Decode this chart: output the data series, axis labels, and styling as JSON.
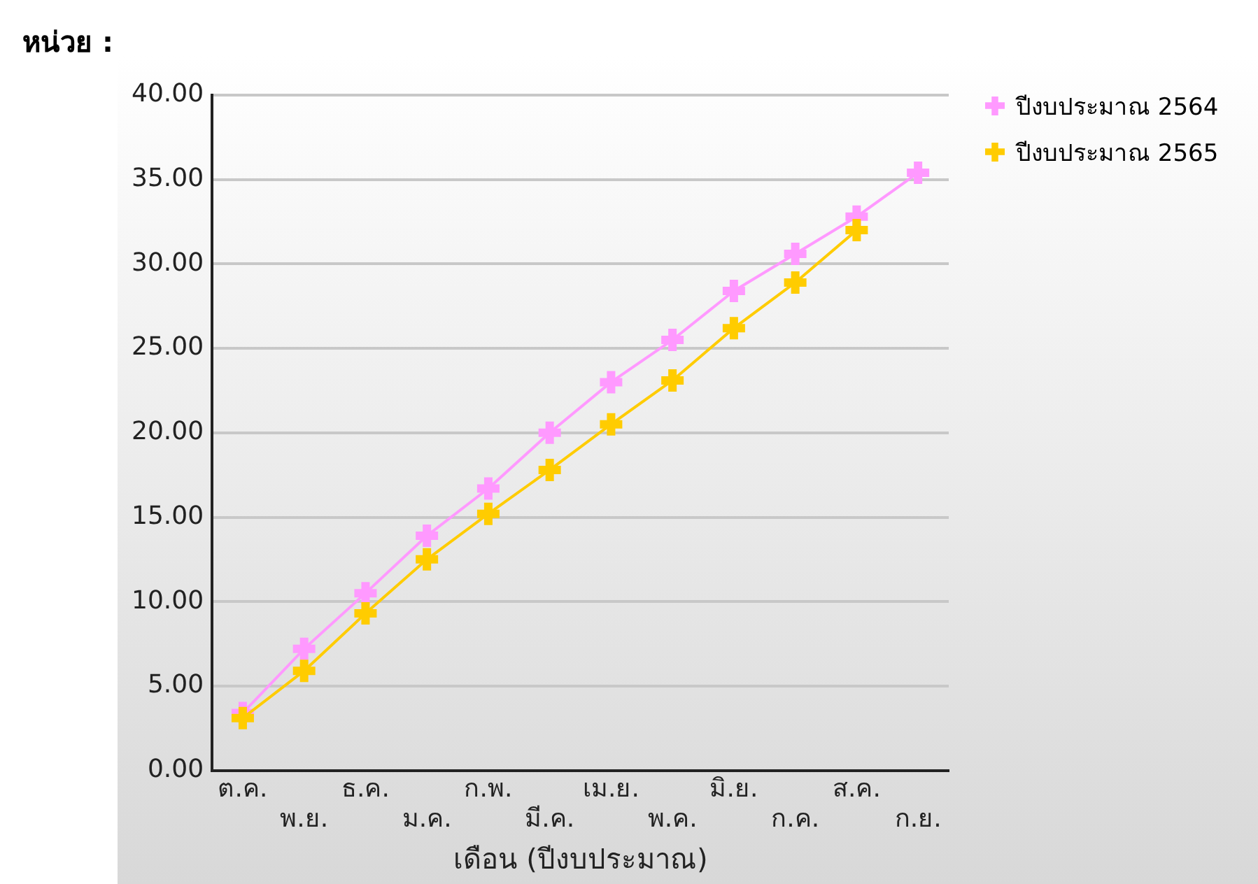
{
  "chart_data": {
    "type": "line",
    "ylabel": "หน่วย :",
    "xlabel": "เดือน (ปีงบประมาณ)",
    "categories": [
      "ต.ค.",
      "พ.ย.",
      "ธ.ค.",
      "ม.ค.",
      "ก.พ.",
      "มี.ค.",
      "เม.ย.",
      "พ.ค.",
      "มิ.ย.",
      "ก.ค.",
      "ส.ค.",
      "ก.ย."
    ],
    "series": [
      {
        "name": "ปีงบประมาณ 2564",
        "color": "#ff99ff",
        "values": [
          3.4,
          7.2,
          10.5,
          13.9,
          16.7,
          20,
          23,
          25.5,
          28.4,
          30.6,
          32.8,
          35.4
        ]
      },
      {
        "name": "ปีงบประมาณ 2565",
        "color": "#ffcc00",
        "values": [
          3.1,
          5.9,
          9.3,
          12.5,
          15.2,
          17.8,
          20.5,
          23.1,
          26.2,
          28.9,
          32,
          null
        ]
      }
    ],
    "ylim": [
      0,
      40
    ],
    "yticks": [
      {
        "value": 0,
        "label": "0.00"
      },
      {
        "value": 5,
        "label": "5.00"
      },
      {
        "value": 10,
        "label": "10.00"
      },
      {
        "value": 15,
        "label": "15.00"
      },
      {
        "value": 20,
        "label": "20.00"
      },
      {
        "value": 25,
        "label": "25.00"
      },
      {
        "value": 30,
        "label": "30.00"
      },
      {
        "value": 35,
        "label": "35.00"
      },
      {
        "value": 40,
        "label": "40.00"
      }
    ],
    "grid": "y",
    "legend": "top right",
    "marker": "cross",
    "line_style": "solid"
  }
}
